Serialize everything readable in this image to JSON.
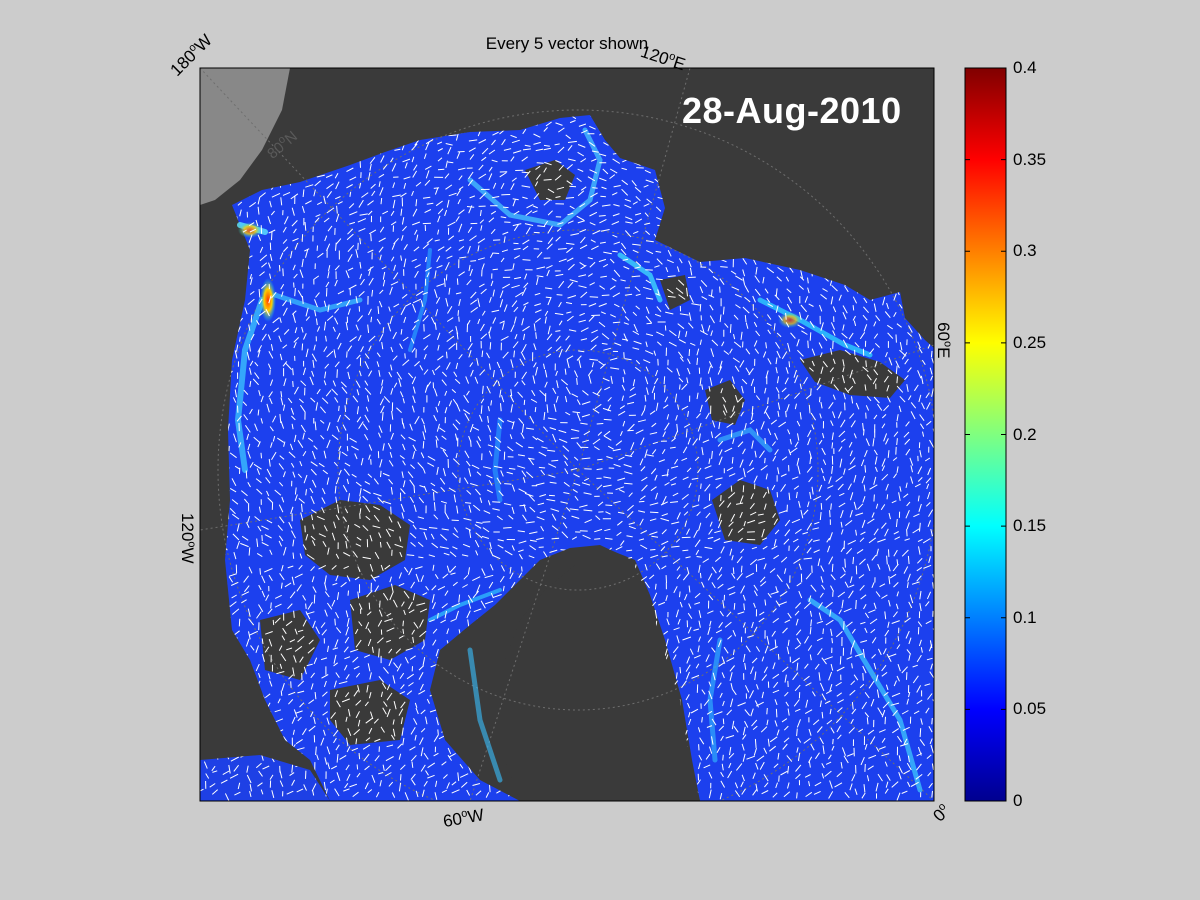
{
  "figure": {
    "title": "Every 5 vector shown",
    "date_label": "28-Aug-2010"
  },
  "map_labels": {
    "top_left": {
      "value": "180",
      "unit": "W"
    },
    "top_right": {
      "value": "120",
      "unit": "E"
    },
    "left": {
      "value": "120",
      "unit": "W"
    },
    "right": {
      "value": "60",
      "unit": "E"
    },
    "bottom_left": {
      "value": "60",
      "unit": "W"
    },
    "bottom_right": {
      "value": "0",
      "unit": ""
    },
    "latitude": {
      "value": "80",
      "unit": "N"
    }
  },
  "colorbar": {
    "min": 0,
    "max": 0.4,
    "ticks": [
      "0",
      "0.05",
      "0.1",
      "0.15",
      "0.2",
      "0.25",
      "0.3",
      "0.35",
      "0.4"
    ],
    "colormap": "jet"
  },
  "colors": {
    "background": "#cccccc",
    "land": "#3a3a3a",
    "sea_low": "#1a3cf0",
    "vectors": "#ffffff"
  }
}
